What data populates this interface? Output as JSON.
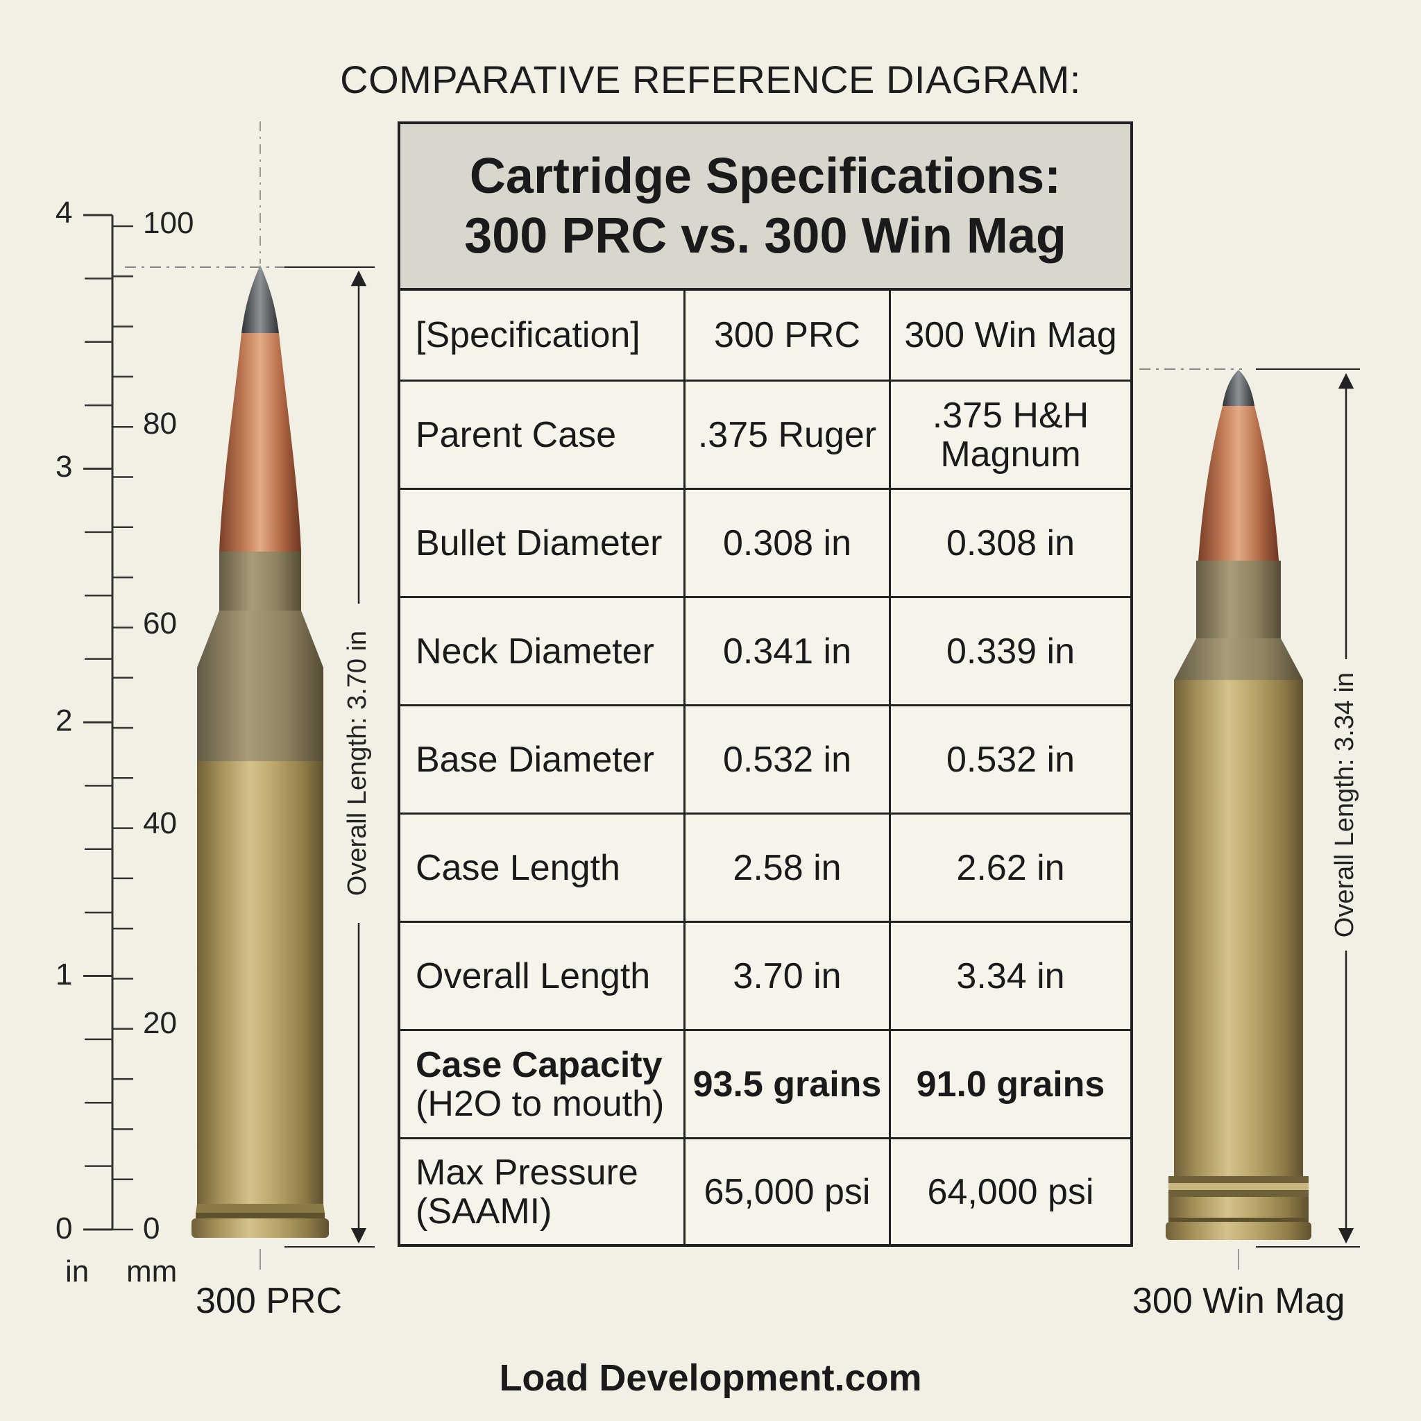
{
  "header": {
    "title": "COMPARATIVE REFERENCE DIAGRAM:"
  },
  "table": {
    "title_line1": "Cartridge Specifications:",
    "title_line2": "300 PRC vs. 300 Win Mag",
    "columns": [
      "[Specification]",
      "300 PRC",
      "300 Win Mag"
    ],
    "rows": [
      {
        "spec": "Parent Case",
        "a": ".375 Ruger",
        "b_line1": ".375 H&H",
        "b_line2": "Magnum"
      },
      {
        "spec": "Bullet Diameter",
        "a": "0.308 in",
        "b": "0.308 in"
      },
      {
        "spec": "Neck Diameter",
        "a": "0.341 in",
        "b": "0.339 in"
      },
      {
        "spec": "Base Diameter",
        "a": "0.532 in",
        "b": "0.532 in"
      },
      {
        "spec": "Case Length",
        "a": "2.58 in",
        "b": "2.62 in"
      },
      {
        "spec": "Overall Length",
        "a": "3.70 in",
        "b": "3.34 in"
      },
      {
        "spec_line1": "Case Capacity",
        "spec_line2": "(H2O to mouth)",
        "a": "93.5 grains",
        "b": "91.0 grains"
      },
      {
        "spec_line1": "Max Pressure",
        "spec_line2": "(SAAMI)",
        "a": "65,000 psi",
        "b": "64,000 psi"
      }
    ]
  },
  "ruler": {
    "inch_ticks": [
      "0",
      "1",
      "2",
      "3",
      "4"
    ],
    "mm_ticks": [
      "0",
      "20",
      "40",
      "60",
      "80",
      "100"
    ],
    "inch_unit": "in",
    "mm_unit": "mm"
  },
  "cartridges": {
    "left": {
      "label": "300 PRC",
      "dimension": "Overall Length: 3.70 in"
    },
    "right": {
      "label": "300 Win Mag",
      "dimension": "Overall Length: 3.34 in"
    }
  },
  "footer": {
    "brand": "Load Development.com"
  },
  "colors": {
    "background": "#f2efe4",
    "brass": "#b09a5c",
    "copper": "#b56a48",
    "tip": "#5a5e62",
    "line": "#222222"
  }
}
